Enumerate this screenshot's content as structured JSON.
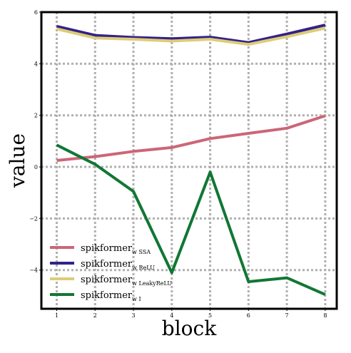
{
  "chart_data": {
    "type": "line",
    "xlabel": "block",
    "ylabel": "value",
    "x": [
      1,
      2,
      3,
      4,
      5,
      6,
      7,
      8
    ],
    "xlim": [
      0.6,
      8.3
    ],
    "ylim": [
      -5.5,
      6
    ],
    "yticks": [
      -4,
      -2,
      0,
      2,
      4,
      6
    ],
    "grid": true,
    "legend_position": "lower-left",
    "series": [
      {
        "name": "spikformer",
        "sub": "w SSA",
        "color": "#cc6677",
        "values": [
          0.25,
          0.4,
          0.6,
          0.75,
          1.1,
          1.3,
          1.5,
          1.98
        ]
      },
      {
        "name": "spikformer",
        "sub": "w ReLU",
        "color": "#332288",
        "values": [
          5.45,
          5.1,
          5.02,
          4.97,
          5.03,
          4.82,
          5.15,
          5.5
        ]
      },
      {
        "name": "spikformer",
        "sub": "w LeakyReLU",
        "color": "#ddcc77",
        "values": [
          5.35,
          5.0,
          4.95,
          4.88,
          4.95,
          4.75,
          5.05,
          5.38
        ]
      },
      {
        "name": "spikformer",
        "sub": "w I",
        "color": "#117733",
        "values": [
          0.85,
          0.1,
          -0.95,
          -4.1,
          -0.2,
          -4.45,
          -4.3,
          -4.95
        ]
      }
    ]
  }
}
